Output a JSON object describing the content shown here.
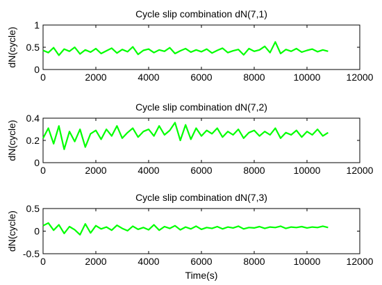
{
  "chart_data": [
    {
      "type": "line",
      "title": "Cycle slip combination dN(7,1)",
      "xlabel": "",
      "ylabel": "dN(cycle)",
      "xlim": [
        0,
        12000
      ],
      "ylim": [
        0,
        1
      ],
      "xticks": [
        0,
        2000,
        4000,
        6000,
        8000,
        10000,
        12000
      ],
      "yticks": [
        0,
        0.5,
        1
      ],
      "ytick_labels": [
        "0",
        "0.5",
        "1"
      ],
      "color": "#00ff00",
      "series": [
        {
          "x": [
            0,
            200,
            400,
            600,
            800,
            1000,
            1200,
            1400,
            1600,
            1800,
            2000,
            2200,
            2400,
            2600,
            2800,
            3000,
            3200,
            3400,
            3600,
            3800,
            4000,
            4200,
            4400,
            4600,
            4800,
            5000,
            5200,
            5400,
            5600,
            5800,
            6000,
            6200,
            6400,
            6600,
            6800,
            7000,
            7200,
            7400,
            7600,
            7800,
            8000,
            8200,
            8400,
            8600,
            8800,
            9000,
            9200,
            9400,
            9600,
            9800,
            10000,
            10200,
            10400,
            10600,
            10800
          ],
          "values": [
            0.43,
            0.38,
            0.49,
            0.32,
            0.46,
            0.41,
            0.5,
            0.35,
            0.44,
            0.39,
            0.47,
            0.36,
            0.42,
            0.48,
            0.37,
            0.45,
            0.4,
            0.51,
            0.34,
            0.43,
            0.46,
            0.38,
            0.44,
            0.41,
            0.49,
            0.36,
            0.42,
            0.47,
            0.39,
            0.44,
            0.4,
            0.46,
            0.37,
            0.43,
            0.48,
            0.38,
            0.42,
            0.45,
            0.33,
            0.47,
            0.41,
            0.44,
            0.52,
            0.38,
            0.62,
            0.36,
            0.45,
            0.41,
            0.47,
            0.39,
            0.43,
            0.46,
            0.4,
            0.44,
            0.41
          ]
        }
      ]
    },
    {
      "type": "line",
      "title": "Cycle slip combination dN(7,2)",
      "xlabel": "",
      "ylabel": "dN(cycle)",
      "xlim": [
        0,
        12000
      ],
      "ylim": [
        0,
        0.4
      ],
      "xticks": [
        0,
        2000,
        4000,
        6000,
        8000,
        10000,
        12000
      ],
      "yticks": [
        0,
        0.2,
        0.4
      ],
      "ytick_labels": [
        "0",
        "0.2",
        "0.4"
      ],
      "color": "#00ff00",
      "series": [
        {
          "x": [
            0,
            200,
            400,
            600,
            800,
            1000,
            1200,
            1400,
            1600,
            1800,
            2000,
            2200,
            2400,
            2600,
            2800,
            3000,
            3200,
            3400,
            3600,
            3800,
            4000,
            4200,
            4400,
            4600,
            4800,
            5000,
            5200,
            5400,
            5600,
            5800,
            6000,
            6200,
            6400,
            6600,
            6800,
            7000,
            7200,
            7400,
            7600,
            7800,
            8000,
            8200,
            8400,
            8600,
            8800,
            9000,
            9200,
            9400,
            9600,
            9800,
            10000,
            10200,
            10400,
            10600,
            10800
          ],
          "values": [
            0.22,
            0.31,
            0.17,
            0.33,
            0.12,
            0.28,
            0.19,
            0.3,
            0.14,
            0.26,
            0.29,
            0.21,
            0.3,
            0.24,
            0.33,
            0.22,
            0.27,
            0.31,
            0.23,
            0.28,
            0.3,
            0.24,
            0.33,
            0.25,
            0.29,
            0.36,
            0.2,
            0.34,
            0.21,
            0.31,
            0.24,
            0.29,
            0.26,
            0.31,
            0.23,
            0.28,
            0.25,
            0.3,
            0.22,
            0.27,
            0.29,
            0.24,
            0.28,
            0.25,
            0.31,
            0.22,
            0.27,
            0.25,
            0.29,
            0.23,
            0.28,
            0.25,
            0.3,
            0.24,
            0.27
          ]
        }
      ]
    },
    {
      "type": "line",
      "title": "Cycle slip combination dN(7,3)",
      "xlabel": "Time(s)",
      "ylabel": "dN(cycle)",
      "xlim": [
        0,
        12000
      ],
      "ylim": [
        -0.5,
        0.5
      ],
      "xticks": [
        0,
        2000,
        4000,
        6000,
        8000,
        10000,
        12000
      ],
      "yticks": [
        -0.5,
        0,
        0.5
      ],
      "ytick_labels": [
        "-0.5",
        "0",
        "0.5"
      ],
      "color": "#00ff00",
      "series": [
        {
          "x": [
            0,
            200,
            400,
            600,
            800,
            1000,
            1200,
            1400,
            1600,
            1800,
            2000,
            2200,
            2400,
            2600,
            2800,
            3000,
            3200,
            3400,
            3600,
            3800,
            4000,
            4200,
            4400,
            4600,
            4800,
            5000,
            5200,
            5400,
            5600,
            5800,
            6000,
            6200,
            6400,
            6600,
            6800,
            7000,
            7200,
            7400,
            7600,
            7800,
            8000,
            8200,
            8400,
            8600,
            8800,
            9000,
            9200,
            9400,
            9600,
            9800,
            10000,
            10200,
            10400,
            10600,
            10800
          ],
          "values": [
            0.12,
            0.18,
            0.02,
            0.14,
            -0.05,
            0.1,
            0.03,
            -0.08,
            0.16,
            -0.04,
            0.12,
            0.05,
            0.09,
            0.02,
            0.13,
            0.06,
            0.01,
            0.11,
            0.04,
            0.08,
            0.03,
            0.14,
            0.02,
            0.1,
            0.06,
            0.12,
            0.03,
            0.09,
            0.05,
            0.11,
            0.04,
            0.08,
            0.06,
            0.1,
            0.05,
            0.09,
            0.07,
            0.11,
            0.05,
            0.08,
            0.07,
            0.1,
            0.06,
            0.09,
            0.08,
            0.11,
            0.06,
            0.09,
            0.08,
            0.1,
            0.07,
            0.09,
            0.08,
            0.11,
            0.08
          ]
        }
      ]
    }
  ]
}
